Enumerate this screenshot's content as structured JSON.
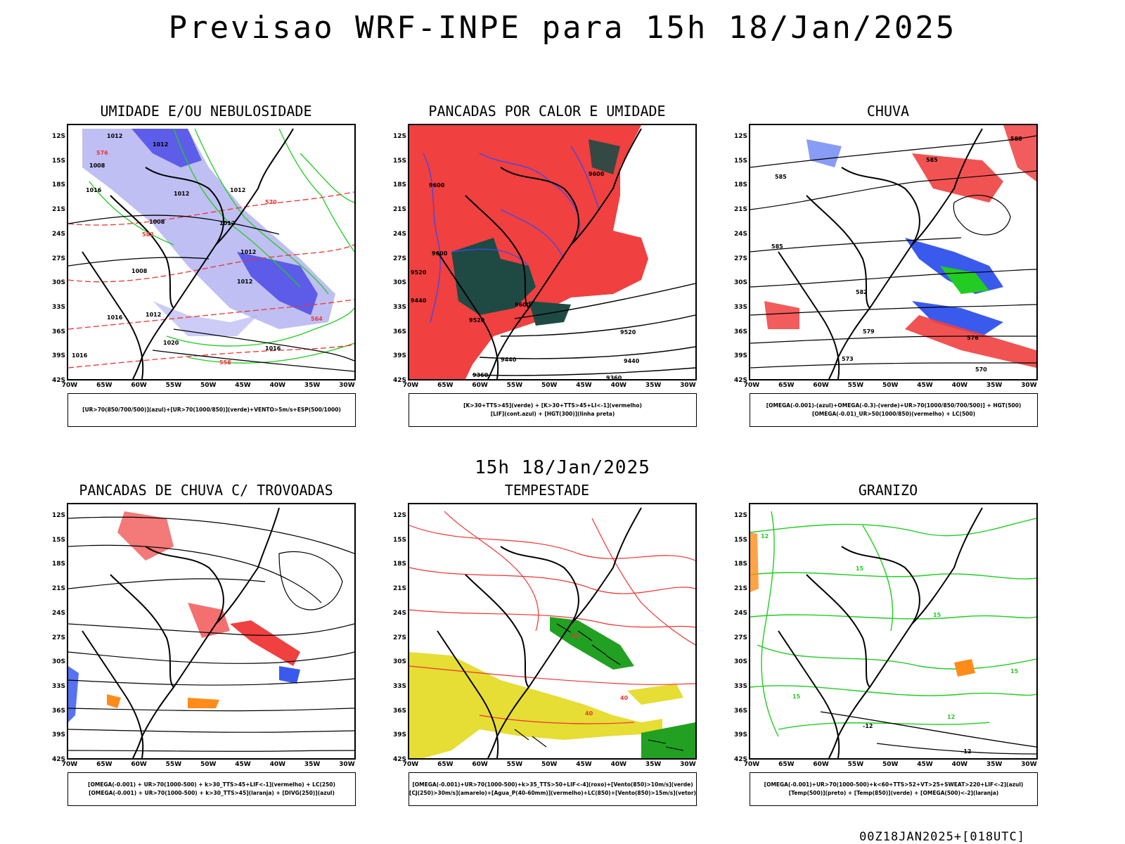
{
  "header": {
    "title": "Previsao WRF-INPE  para 15h 18/Jan/2025",
    "mid_title": "15h 18/Jan/2025",
    "footer_stamp": "00Z18JAN2025+[018UTC]"
  },
  "axes": {
    "lat_labels": [
      "12S",
      "15S",
      "18S",
      "21S",
      "24S",
      "27S",
      "30S",
      "33S",
      "36S",
      "39S",
      "42S"
    ],
    "lon_labels": [
      "70W",
      "65W",
      "60W",
      "55W",
      "50W",
      "45W",
      "40W",
      "35W",
      "30W"
    ]
  },
  "panels": [
    {
      "title": "UMIDADE E/OU NEBULOSIDADE",
      "legend_line1": "[UR>70(850/700/500)](azul)+[UR>70(1000/850)](verde)+VENTO>5m/s+ESP(500/1000)",
      "legend_line2": "",
      "contour_labels": [
        "1012",
        "1012",
        "1008",
        "1012",
        "1016",
        "1012",
        "1008",
        "1012",
        "1012",
        "1008",
        "1012",
        "1012",
        "1016",
        "1020",
        "1016",
        "1016",
        "576",
        "582",
        "570",
        "564",
        "558"
      ]
    },
    {
      "title": "PANCADAS POR CALOR E UMIDADE",
      "legend_line1": "[K>30+TTS>45](verde) + [K>30+TTS>45+LI<-1](vermelho)",
      "legend_line2": "[LIF](cont.azul) + [HGT(300)](linha preta)",
      "contour_labels": [
        "9600",
        "9600",
        "9600",
        "9520",
        "9440",
        "9600",
        "9520",
        "9440",
        "9360",
        "9360",
        "9520",
        "9440"
      ]
    },
    {
      "title": "CHUVA",
      "legend_line1": "[OMEGA(-0.001)-(azul)+OMEGA(-0.3)-(verde)+UR>70(1000/850/700/500)] + HGT(500)",
      "legend_line2": "[OMEGA(-0.01)_UR>50(1000/850)(vermelho) + LC(500)",
      "contour_labels": [
        "588",
        "585",
        "585",
        "585",
        "582",
        "579",
        "576",
        "573",
        "570"
      ]
    },
    {
      "title": "PANCADAS DE CHUVA C/ TROVOADAS",
      "legend_line1": "[OMEGA(-0.001) + UR>70(1000-500) + k>30_TTS>45+LIF<-1](vermelho) + LC(250)",
      "legend_line2": "[OMEGA(-0.001) + UR>70(1000-500) + k>30_TTS>45](laranja) + [DIVG(250)](azul)",
      "contour_labels": []
    },
    {
      "title": "TEMPESTADE",
      "legend_line1": "[OMEGA(-0.001)+UR>70(1000-500)+k>35_TTS>50+LIF<-4](roxo)+[Vento(850)>10m/s](verde)",
      "legend_line2": "[CJ(250)>30m/s](amarelo)+[Agua_P(40-60mm)](vermelho)+LC(850)+[Vento(850)>15m/s](vetor)",
      "contour_labels": [
        "40",
        "40",
        "40"
      ]
    },
    {
      "title": "GRANIZO",
      "legend_line1": "[OMEGA(-0.001)+UR>70(1000-500)+k<60+TTS>52+VT>25+SWEAT>220+LIF<-2](azul)",
      "legend_line2": "[Temp(500)](preto) + [Temp(850)](verde) + [OMEGA(500)<-2](laranja)",
      "contour_labels": [
        "-12",
        "-12",
        "12",
        "15",
        "15",
        "15",
        "12",
        "15"
      ]
    }
  ]
}
